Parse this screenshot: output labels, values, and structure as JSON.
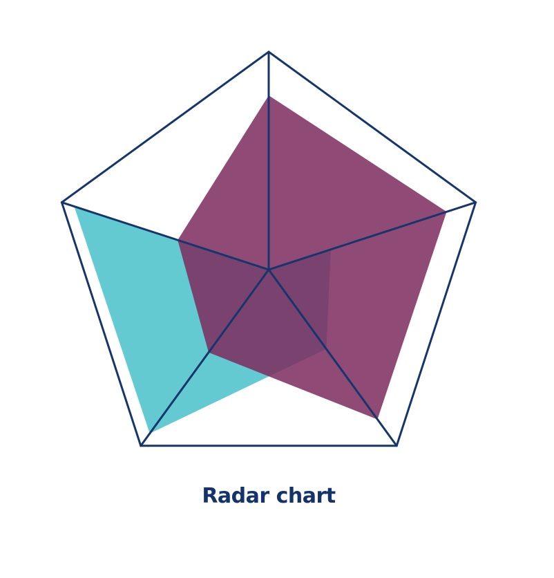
{
  "chart_data": {
    "type": "radar",
    "title": "Radar chart",
    "axes_count": 5,
    "range": [
      0,
      1
    ],
    "grid": false,
    "series": [
      {
        "color": "#4fc3cc",
        "opacity": 0.88,
        "values": [
          0.0,
          0.3,
          0.45,
          0.93,
          0.94
        ]
      },
      {
        "color": "#7d2a5e",
        "opacity": 0.85,
        "values": [
          0.8,
          0.86,
          0.85,
          0.47,
          0.44
        ]
      }
    ],
    "colors": {
      "frame": "#15356b",
      "title": "#14336a"
    }
  }
}
